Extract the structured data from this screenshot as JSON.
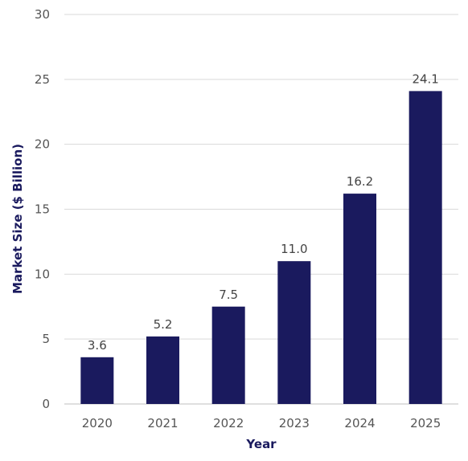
{
  "chart_data": {
    "type": "bar",
    "title": "",
    "xlabel": "Year",
    "ylabel": "Market Size ($ Billion)",
    "categories": [
      "2020",
      "2021",
      "2022",
      "2023",
      "2024",
      "2025"
    ],
    "values": [
      3.6,
      5.2,
      7.5,
      11.0,
      16.2,
      24.1
    ],
    "data_labels": [
      "3.6",
      "5.2",
      "7.5",
      "11.0",
      "16.2",
      "24.1"
    ],
    "ylim": [
      0,
      30
    ],
    "yticks": [
      0,
      5,
      10,
      15,
      20,
      25,
      30
    ],
    "grid": true,
    "legend": "none",
    "colors": {
      "bar": "#1a1a5e",
      "axis_title": "#1a1a5e",
      "grid": "#d9d9d9"
    }
  }
}
